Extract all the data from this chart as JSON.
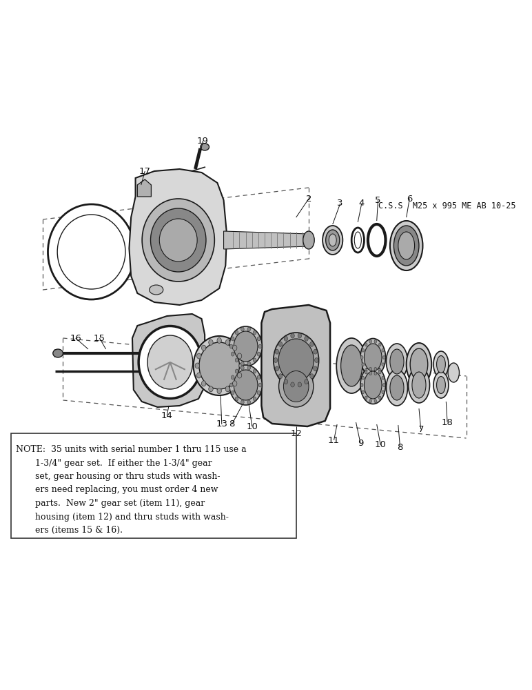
{
  "background_color": "#ffffff",
  "line_color": "#1a1a1a",
  "dashed_color": "#555555",
  "text_color": "#111111",
  "css_label": "C.S.S  M25 x 995 ME AB 10-25",
  "note_text_line1": "NOTE:  35 units with serial number 1 thru 115 use a",
  "note_text_line2": "       1-3/4\" gear set.  If either the 1-3/4\" gear",
  "note_text_line3": "       set, gear housing or thru studs with wash-",
  "note_text_line4": "       ers need replacing, you must order 4 new",
  "note_text_line5": "       parts.  New 2\" gear set (item 11), gear",
  "note_text_line6": "       housing (item 12) and thru studs with wash-",
  "note_text_line7": "       ers (items 15 & 16).",
  "font_size_note": 9.0,
  "font_size_label": 9.5,
  "font_size_css": 8.5
}
